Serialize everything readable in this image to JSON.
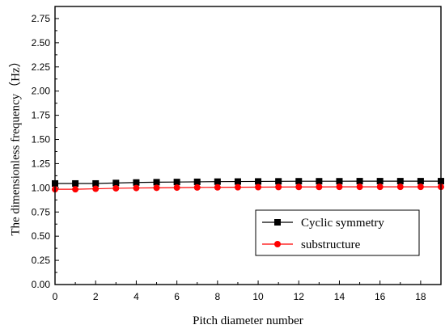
{
  "chart_data": {
    "type": "line",
    "title": "",
    "xlabel": "Pitch diameter number",
    "ylabel": "The dimensionless frequency（Hz）",
    "xlim": [
      0,
      19
    ],
    "ylim": [
      0,
      2.875
    ],
    "x_ticks": [
      0,
      2,
      4,
      6,
      8,
      10,
      12,
      14,
      16,
      18
    ],
    "y_ticks": [
      0.0,
      0.25,
      0.5,
      0.75,
      1.0,
      1.25,
      1.5,
      1.75,
      2.0,
      2.25,
      2.5,
      2.75
    ],
    "x_tick_labels": [
      "0",
      "2",
      "4",
      "6",
      "8",
      "10",
      "12",
      "14",
      "16",
      "18"
    ],
    "y_tick_labels": [
      "0.00",
      "0.25",
      "0.50",
      "0.75",
      "1.00",
      "1.25",
      "1.50",
      "1.75",
      "2.00",
      "2.25",
      "2.50",
      "2.75"
    ],
    "grid": false,
    "legend_position": "lower-right",
    "x": [
      0,
      1,
      2,
      3,
      4,
      5,
      6,
      7,
      8,
      9,
      10,
      11,
      12,
      13,
      14,
      15,
      16,
      17,
      18,
      19
    ],
    "series": [
      {
        "name": "Cyclic symmetry",
        "color": "#000000",
        "marker": "square",
        "values": [
          1.045,
          1.045,
          1.045,
          1.05,
          1.055,
          1.058,
          1.06,
          1.062,
          1.064,
          1.065,
          1.066,
          1.067,
          1.068,
          1.068,
          1.068,
          1.069,
          1.069,
          1.069,
          1.069,
          1.069
        ]
      },
      {
        "name": "substructure",
        "color": "#ff0000",
        "marker": "circle",
        "values": [
          0.985,
          0.985,
          0.99,
          0.995,
          0.998,
          1.0,
          1.002,
          1.004,
          1.005,
          1.006,
          1.007,
          1.008,
          1.009,
          1.009,
          1.01,
          1.01,
          1.01,
          1.01,
          1.01,
          1.01
        ]
      }
    ]
  }
}
